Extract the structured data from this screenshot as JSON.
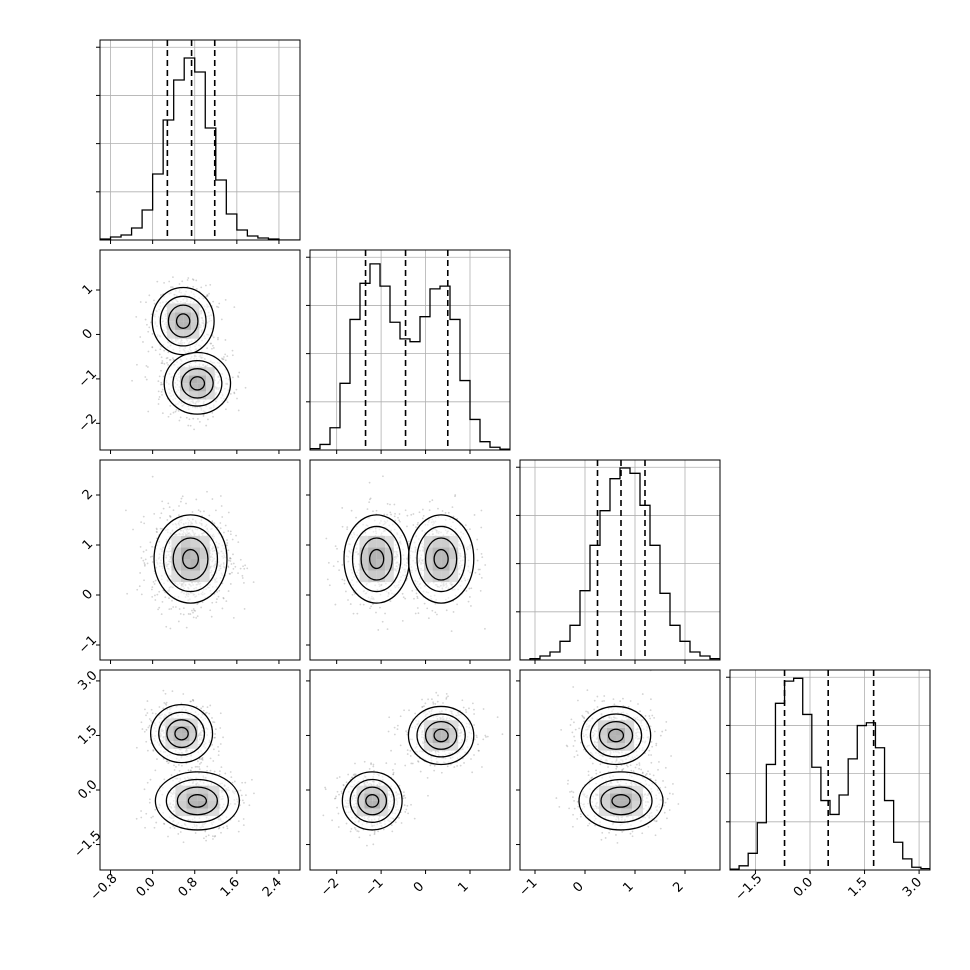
{
  "chart_data": {
    "type": "corner",
    "variables": 4,
    "panels": [
      {
        "kind": "hist",
        "row": 0,
        "col": 0,
        "xlim": [
          -1.0,
          2.8
        ],
        "bin_start": -1.0,
        "bin_width": 0.2,
        "counts": [
          0.5,
          1.5,
          2.5,
          6,
          15,
          33,
          60,
          80,
          91,
          84,
          56,
          30,
          13,
          5,
          2,
          1,
          0.5,
          0,
          0
        ],
        "ymax": 100,
        "quantiles": [
          0.28,
          0.74,
          1.18
        ]
      },
      {
        "kind": "hist",
        "row": 1,
        "col": 1,
        "xlim": [
          -2.6,
          1.9
        ],
        "bin_start": -2.6,
        "bin_width": 0.225,
        "counts": [
          0.5,
          2,
          8,
          24,
          47,
          60,
          67,
          59,
          46,
          40,
          39,
          48,
          58,
          59,
          47,
          25,
          11,
          3,
          1,
          0.3
        ],
        "ymax": 72,
        "quantiles": [
          -1.35,
          -0.45,
          0.5
        ]
      },
      {
        "kind": "hist",
        "row": 2,
        "col": 2,
        "xlim": [
          -1.3,
          2.7
        ],
        "bin_start": -1.3,
        "bin_width": 0.2,
        "counts": [
          0,
          0.5,
          1.5,
          3,
          7,
          13,
          26,
          43,
          56,
          68,
          72,
          70,
          58,
          43,
          25,
          13,
          7,
          3,
          1.5,
          0.5
        ],
        "ymax": 75,
        "quantiles": [
          0.25,
          0.72,
          1.2
        ]
      },
      {
        "kind": "hist",
        "row": 3,
        "col": 3,
        "xlim": [
          -2.2,
          3.3
        ],
        "bin_start": -2.2,
        "bin_width": 0.25,
        "counts": [
          0.3,
          1.5,
          6,
          17,
          38,
          60,
          68,
          69,
          56,
          37,
          25,
          20,
          27,
          40,
          52,
          53,
          44,
          25,
          10,
          4,
          1,
          0.5
        ],
        "ymax": 72,
        "quantiles": [
          -0.7,
          0.5,
          1.75
        ]
      },
      {
        "kind": "2d",
        "row": 1,
        "col": 0,
        "xlim": [
          -1.0,
          2.8
        ],
        "ylim": [
          -2.6,
          1.9
        ],
        "modes": [
          {
            "x": 0.58,
            "y": 0.3,
            "sx": 0.28,
            "sy": 0.36
          },
          {
            "x": 0.85,
            "y": -1.1,
            "sx": 0.3,
            "sy": 0.33
          }
        ]
      },
      {
        "kind": "2d",
        "row": 2,
        "col": 0,
        "xlim": [
          -1.0,
          2.8
        ],
        "ylim": [
          -1.3,
          2.7
        ],
        "modes": [
          {
            "x": 0.72,
            "y": 0.72,
            "sx": 0.33,
            "sy": 0.42
          }
        ]
      },
      {
        "kind": "2d",
        "row": 2,
        "col": 1,
        "xlim": [
          -2.6,
          1.9
        ],
        "ylim": [
          -1.3,
          2.7
        ],
        "modes": [
          {
            "x": -1.1,
            "y": 0.72,
            "sx": 0.35,
            "sy": 0.42
          },
          {
            "x": 0.35,
            "y": 0.72,
            "sx": 0.35,
            "sy": 0.42
          }
        ]
      },
      {
        "kind": "2d",
        "row": 3,
        "col": 0,
        "xlim": [
          -1.0,
          2.8
        ],
        "ylim": [
          -2.2,
          3.3
        ],
        "modes": [
          {
            "x": 0.55,
            "y": 1.55,
            "sx": 0.28,
            "sy": 0.38
          },
          {
            "x": 0.85,
            "y": -0.3,
            "sx": 0.38,
            "sy": 0.38
          }
        ]
      },
      {
        "kind": "2d",
        "row": 3,
        "col": 1,
        "xlim": [
          -2.6,
          1.9
        ],
        "ylim": [
          -2.2,
          3.3
        ],
        "modes": [
          {
            "x": -1.2,
            "y": -0.3,
            "sx": 0.32,
            "sy": 0.38
          },
          {
            "x": 0.35,
            "y": 1.5,
            "sx": 0.35,
            "sy": 0.38
          }
        ]
      },
      {
        "kind": "2d",
        "row": 3,
        "col": 2,
        "xlim": [
          -1.3,
          2.7
        ],
        "ylim": [
          -2.2,
          3.3
        ],
        "modes": [
          {
            "x": 0.62,
            "y": 1.5,
            "sx": 0.33,
            "sy": 0.38
          },
          {
            "x": 0.72,
            "y": -0.3,
            "sx": 0.4,
            "sy": 0.38
          }
        ]
      }
    ],
    "x_ticks": [
      {
        "col": 0,
        "values": [
          -0.8,
          0.0,
          0.8,
          1.6,
          2.4
        ],
        "labels": [
          "−0.8",
          "0.0",
          "0.8",
          "1.6",
          "2.4"
        ]
      },
      {
        "col": 1,
        "values": [
          -2,
          -1,
          0,
          1
        ],
        "labels": [
          "−2",
          "−1",
          "0",
          "1"
        ]
      },
      {
        "col": 2,
        "values": [
          -1,
          0,
          1,
          2
        ],
        "labels": [
          "−1",
          "0",
          "1",
          "2"
        ]
      },
      {
        "col": 3,
        "values": [
          -1.5,
          0.0,
          1.5,
          3.0
        ],
        "labels": [
          "−1.5",
          "0.0",
          "1.5",
          "3.0"
        ]
      }
    ],
    "y_ticks": [
      {
        "row": 1,
        "values": [
          1,
          0,
          -1,
          -2
        ],
        "labels": [
          "1",
          "0",
          "−1",
          "−2"
        ]
      },
      {
        "row": 2,
        "values": [
          2,
          1,
          0,
          -1
        ],
        "labels": [
          "2",
          "1",
          "0",
          "−1"
        ]
      },
      {
        "row": 3,
        "values": [
          3.0,
          1.5,
          0.0,
          -1.5
        ],
        "labels": [
          "3.0",
          "1.5",
          "0.0",
          "−1.5"
        ]
      }
    ],
    "grid": true,
    "colors": {
      "line": "#000000",
      "grid": "#b0b0b0",
      "points": "#808080"
    }
  }
}
